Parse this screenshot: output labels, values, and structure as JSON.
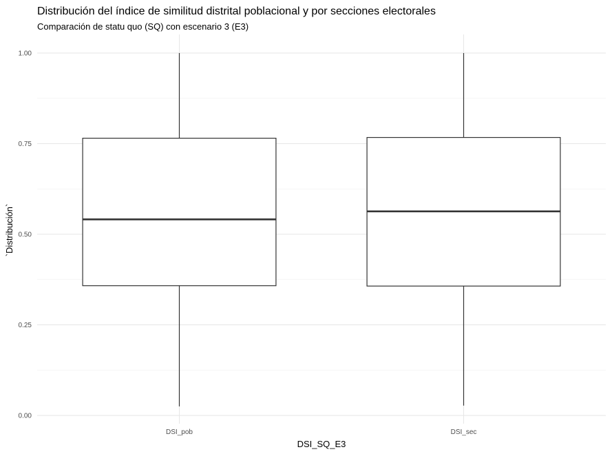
{
  "chart_data": {
    "type": "boxplot",
    "title": "Distribución del índice de similitud distrital poblacional y por secciones electorales",
    "subtitle": "Comparación de statu quo (SQ) con escenario 3 (E3)",
    "xlabel": "DSI_SQ_E3",
    "ylabel": "`Distribución`",
    "categories": [
      "DSI_pob",
      "DSI_sec"
    ],
    "boxes": [
      {
        "category": "DSI_pob",
        "min": 0.025,
        "q1": 0.358,
        "median": 0.541,
        "q3": 0.765,
        "max": 1.0
      },
      {
        "category": "DSI_sec",
        "min": 0.027,
        "q1": 0.357,
        "median": 0.563,
        "q3": 0.767,
        "max": 1.0
      }
    ],
    "ylim": [
      -0.0,
      1.05
    ],
    "yticks": [
      0.0,
      0.25,
      0.5,
      0.75,
      1.0
    ],
    "ytick_labels": [
      "0.00",
      "0.25",
      "0.50",
      "0.75",
      "1.00"
    ],
    "grid": true,
    "theme": "minimal",
    "colors": {
      "box_outline": "#333333",
      "box_fill": "#ffffff",
      "grid_major": "#e6e6e6",
      "grid_minor": "#f2f2f2",
      "tick_text": "#4d4d4d"
    }
  }
}
